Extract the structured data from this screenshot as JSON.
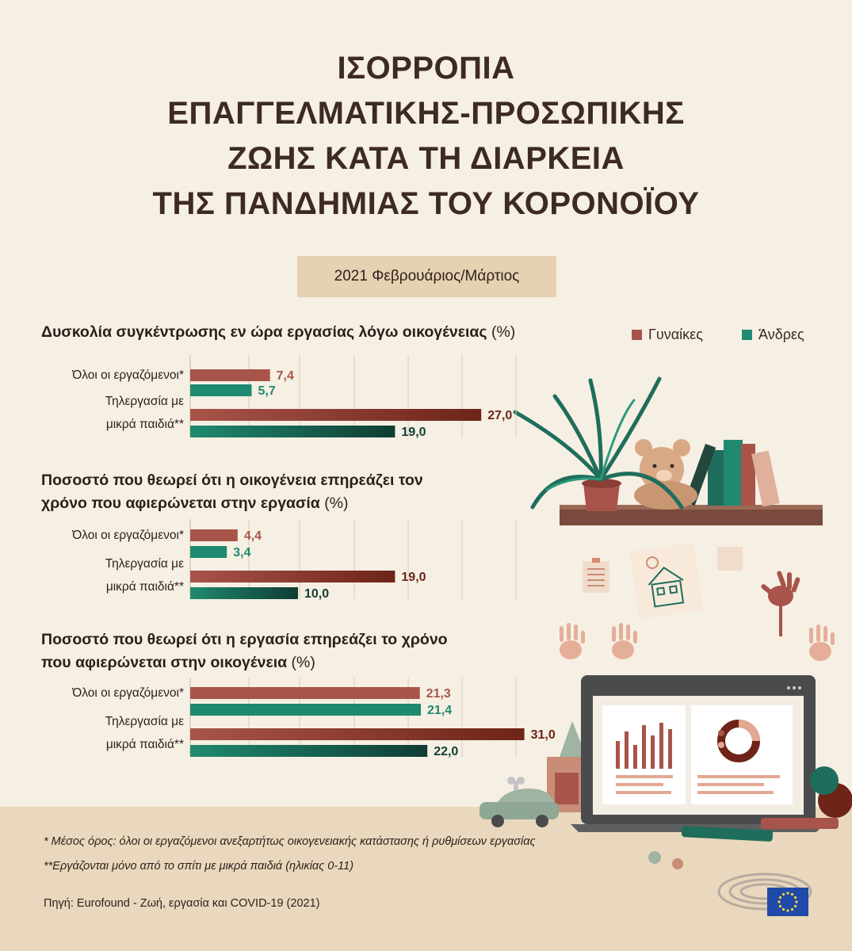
{
  "title_lines": [
    "ΙΣΟΡΡΟΠΙΑ",
    "ΕΠΑΓΓΕΛΜΑΤΙΚΗΣ-ΠΡΟΣΩΠΙΚΗΣ",
    "ΖΩΗΣ ΚΑΤΑ ΤΗ ΔΙΑΡΚΕΙΑ",
    "ΤΗΣ ΠΑΝΔΗΜΙΑΣ ΤΟΥ ΚΟΡΟΝΟΪΟΥ"
  ],
  "period": "2021 Φεβρουάριος/Μάρτιος",
  "legend": {
    "women": "Γυναίκες",
    "men": "Άνδρες"
  },
  "colors": {
    "women": "#a8544a",
    "women_dark": "#6e2418",
    "men": "#1f8a6f",
    "men_dark": "#0f3d33",
    "background": "#f6efe3",
    "footer": "#e9d8bd",
    "period_box": "#e6d2b3"
  },
  "chart_data": [
    {
      "type": "bar",
      "orientation": "horizontal",
      "title_bold": "Δυσκολία συγκέντρωσης εν ώρα εργασίας λόγω οικογένειας",
      "title_unit": "(%)",
      "categories": [
        "Όλοι οι εργαζόμενοι*",
        "Τηλεργασία με μικρά παιδιά**"
      ],
      "category_lines": [
        [
          "Όλοι οι εργαζόμενοι*"
        ],
        [
          "Τηλεργασία με",
          "μικρά παιδιά**"
        ]
      ],
      "series": [
        {
          "name": "Γυναίκες",
          "values": [
            7.4,
            27.0
          ],
          "labels": [
            "7,4",
            "27,0"
          ]
        },
        {
          "name": "Άνδρες",
          "values": [
            5.7,
            19.0
          ],
          "labels": [
            "5,7",
            "19,0"
          ]
        }
      ],
      "xlim": [
        0,
        35
      ],
      "grid": true,
      "legend_position": "top-right"
    },
    {
      "type": "bar",
      "orientation": "horizontal",
      "title_bold": "Ποσοστό που θεωρεί ότι η οικογένεια επηρεάζει τον χρόνο που αφιερώνεται στην εργασία",
      "title_bold_lines": [
        "Ποσοστό που θεωρεί ότι η οικογένεια επηρεάζει τον",
        "χρόνο που αφιερώνεται στην εργασία"
      ],
      "title_unit": "(%)",
      "categories": [
        "Όλοι οι εργαζόμενοι*",
        "Τηλεργασία με μικρά παιδιά**"
      ],
      "category_lines": [
        [
          "Όλοι οι εργαζόμενοι*"
        ],
        [
          "Τηλεργασία με",
          "μικρά παιδιά**"
        ]
      ],
      "series": [
        {
          "name": "Γυναίκες",
          "values": [
            4.4,
            19.0
          ],
          "labels": [
            "4,4",
            "19,0"
          ]
        },
        {
          "name": "Άνδρες",
          "values": [
            3.4,
            10.0
          ],
          "labels": [
            "3,4",
            "10,0"
          ]
        }
      ],
      "xlim": [
        0,
        35
      ],
      "grid": true
    },
    {
      "type": "bar",
      "orientation": "horizontal",
      "title_bold": "Ποσοστό που θεωρεί ότι η εργασία επηρεάζει το χρόνο που αφιερώνεται στην οικογένεια",
      "title_bold_lines": [
        "Ποσοστό που θεωρεί ότι η εργασία επηρεάζει το χρόνο",
        "που αφιερώνεται στην οικογένεια"
      ],
      "title_unit": "(%)",
      "categories": [
        "Όλοι οι εργαζόμενοι*",
        "Τηλεργασία με μικρά παιδιά**"
      ],
      "category_lines": [
        [
          "Όλοι οι εργαζόμενοι*"
        ],
        [
          "Τηλεργασία με",
          "μικρά παιδιά**"
        ]
      ],
      "series": [
        {
          "name": "Γυναίκες",
          "values": [
            21.3,
            31.0
          ],
          "labels": [
            "21,3",
            "31,0"
          ]
        },
        {
          "name": "Άνδρες",
          "values": [
            21.4,
            22.0
          ],
          "labels": [
            "21,4",
            "22,0"
          ]
        }
      ],
      "xlim": [
        0,
        35
      ],
      "grid": true
    }
  ],
  "notes": [
    "* Μέσος όρος: όλοι οι εργαζόμενοι ανεξαρτήτως οικογενειακής κατάστασης ή ρυθμίσεων εργασίας",
    "**Εργάζονται μόνο από το σπίτι με μικρά παιδιά (ηλικίας 0-11)"
  ],
  "source": "Πηγή: Eurofound - Ζωή, εργασία και COVID-19 (2021)",
  "icons": [
    "plant-icon",
    "teddy-bear-icon",
    "books-icon",
    "shelf-icon",
    "house-drawing-icon",
    "handprint-icon",
    "laptop-icon",
    "toy-car-icon",
    "crayon-icon",
    "parliament-logo",
    "eu-flag-icon"
  ]
}
